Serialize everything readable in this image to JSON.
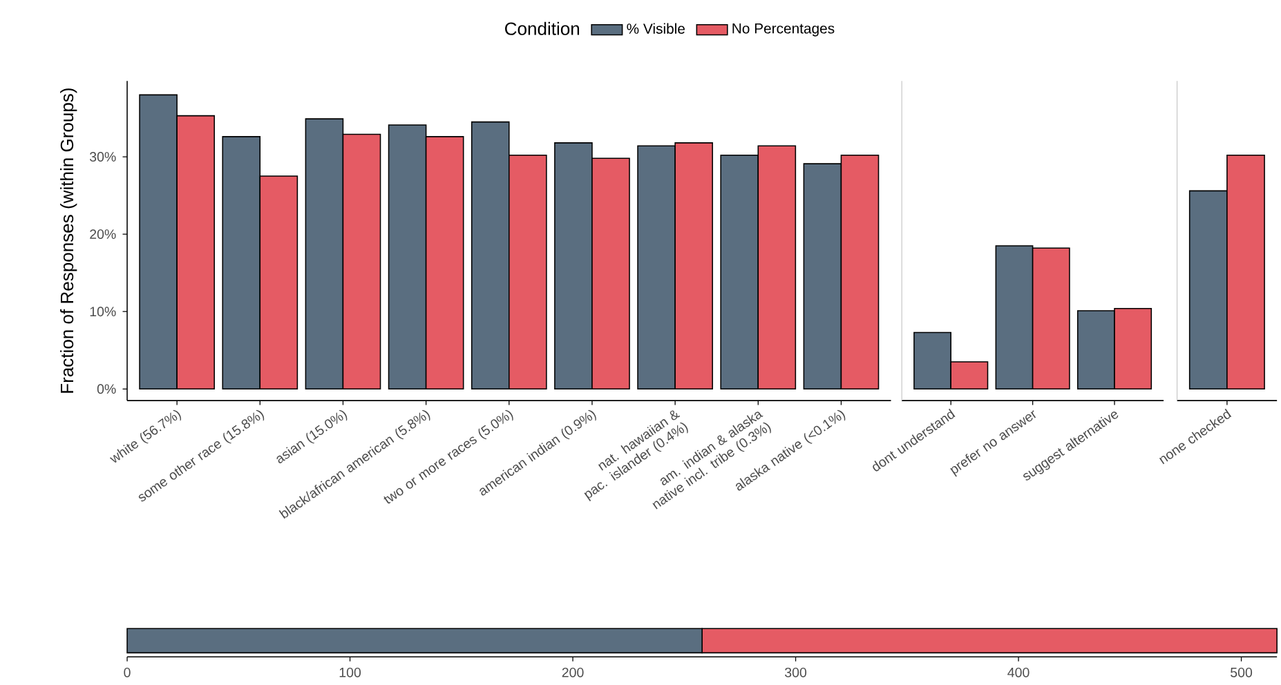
{
  "chart_data": [
    {
      "type": "bar",
      "ylabel": "Fraction of Responses (within Groups)",
      "legend_title": "Condition",
      "legend": "top",
      "categories": [
        "white (56.7%)",
        "some other race (15.8%)",
        "asian (15.0%)",
        "black/african american (5.8%)",
        "two or more races (5.0%)",
        "american indian (0.9%)",
        "nat. hawaiian & pac. islander (0.4%)",
        "am. indian & alaska native incl. tribe (0.3%)",
        "alaska native (<0.1%)"
      ],
      "series": [
        {
          "name": "% Visible",
          "color": "#5a6e80",
          "values": [
            38.0,
            32.6,
            34.9,
            34.1,
            34.5,
            31.8,
            31.4,
            30.2,
            29.1
          ]
        },
        {
          "name": "No Percentages",
          "color": "#e55b64",
          "values": [
            35.3,
            27.5,
            32.9,
            32.6,
            30.2,
            29.8,
            31.8,
            31.4,
            30.2
          ]
        }
      ],
      "ylim": [
        -1.5,
        39.8
      ],
      "yticks": [
        {
          "value": 0,
          "label": "0%"
        },
        {
          "value": 10,
          "label": "10%"
        },
        {
          "value": 20,
          "label": "20%"
        },
        {
          "value": 30,
          "label": "30%"
        }
      ]
    },
    {
      "type": "bar",
      "categories": [
        "dont understand",
        "prefer no answer",
        "suggest alternative"
      ],
      "series": [
        {
          "color": "#5a6e80",
          "values": [
            7.3,
            18.5,
            10.1
          ]
        },
        {
          "color": "#e55b64",
          "values": [
            3.5,
            18.2,
            10.4
          ]
        }
      ],
      "ylim": [
        -1.5,
        39.8
      ],
      "tick_labels": "x"
    },
    {
      "type": "bar",
      "categories": [
        "none checked"
      ],
      "series": [
        {
          "color": "#5a6e80",
          "values": [
            25.6
          ]
        },
        {
          "color": "#e55b64",
          "values": [
            30.2
          ]
        }
      ],
      "ylim": [
        -1.5,
        39.8
      ],
      "tick_labels": "x"
    },
    {
      "type": "bar",
      "orientation": "horizontal",
      "stacked": true,
      "categories": [
        null
      ],
      "series": [
        {
          "color": "#5a6e80",
          "values": [
            258
          ]
        },
        {
          "color": "#e55b64",
          "values": [
            258
          ]
        }
      ],
      "xlim": [
        0,
        516
      ],
      "xticks": [
        0,
        100,
        200,
        300,
        400,
        500
      ],
      "tick_labels": "x"
    }
  ]
}
